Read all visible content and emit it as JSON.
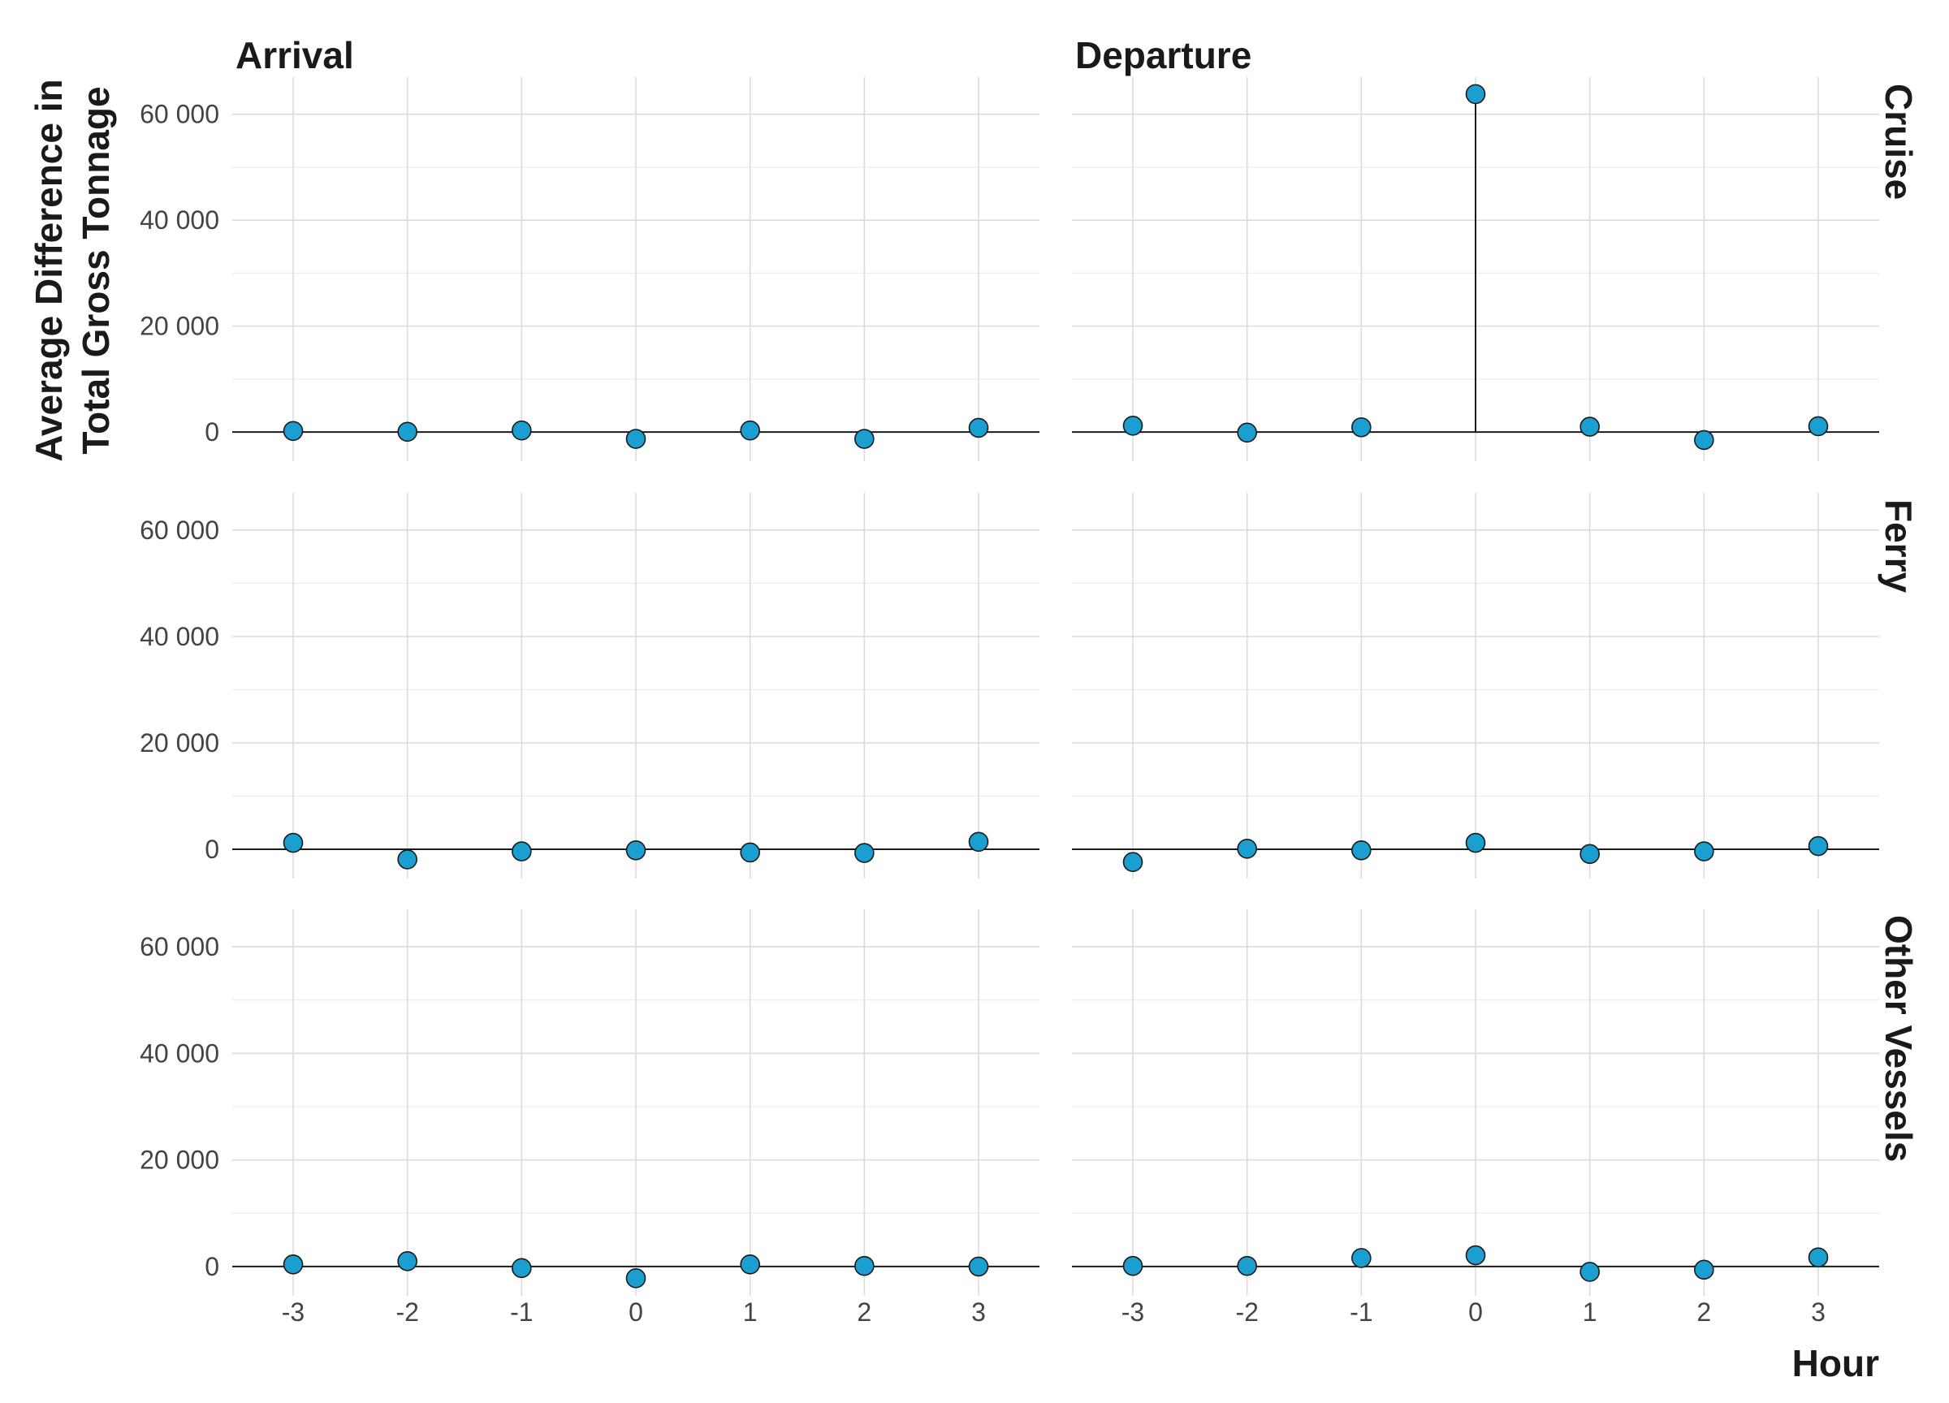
{
  "chart_data": {
    "type": "scatter",
    "facet_columns": [
      "Arrival",
      "Departure"
    ],
    "facet_rows": [
      "Cruise",
      "Ferry",
      "Other Vessels"
    ],
    "x": [
      -3,
      -2,
      -1,
      0,
      1,
      2,
      3
    ],
    "x_tick_labels": [
      "-3",
      "-2",
      "-1",
      "0",
      "1",
      "2",
      "3"
    ],
    "xlabel": "Hour",
    "ylabel": [
      "Average Difference in",
      "Total Gross Tonnage"
    ],
    "ylim": [
      -5500,
      67000
    ],
    "y_ticks": [
      0,
      20000,
      40000,
      60000
    ],
    "y_tick_labels": [
      "0",
      "20 000",
      "40 000",
      "60 000"
    ],
    "grid": true,
    "point_color": "#1a9fd0",
    "panels": [
      {
        "row": "Cruise",
        "column": "Arrival",
        "values": [
          200,
          50,
          300,
          -1300,
          300,
          -1300,
          800
        ]
      },
      {
        "row": "Cruise",
        "column": "Departure",
        "values": [
          1200,
          -100,
          900,
          63800,
          1000,
          -1500,
          1100
        ]
      },
      {
        "row": "Ferry",
        "column": "Arrival",
        "values": [
          1200,
          -1900,
          -400,
          -200,
          -600,
          -700,
          1400
        ]
      },
      {
        "row": "Ferry",
        "column": "Departure",
        "values": [
          -2400,
          100,
          -200,
          1200,
          -900,
          -400,
          600
        ]
      },
      {
        "row": "Other Vessels",
        "column": "Arrival",
        "values": [
          400,
          1000,
          -300,
          -2200,
          400,
          100,
          0
        ]
      },
      {
        "row": "Other Vessels",
        "column": "Departure",
        "values": [
          100,
          100,
          1600,
          2100,
          -1000,
          -600,
          1700
        ]
      }
    ]
  }
}
